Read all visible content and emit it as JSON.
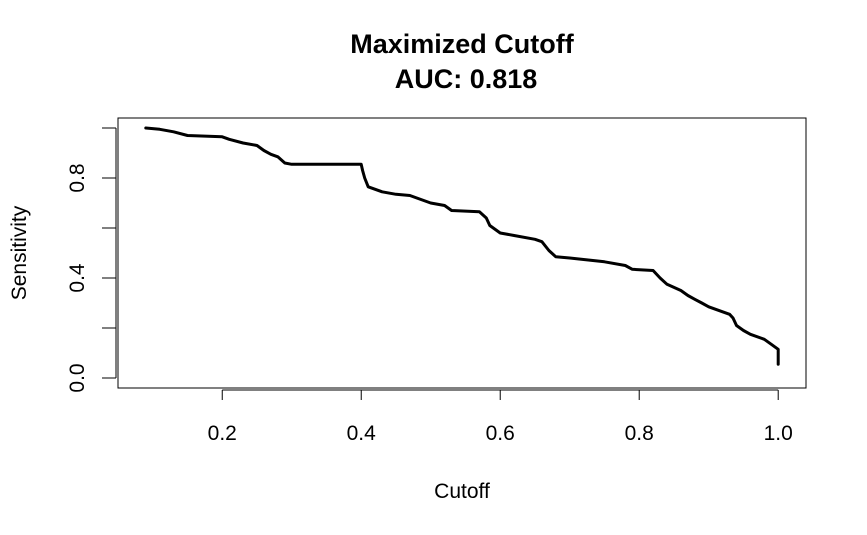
{
  "chart_data": {
    "type": "line",
    "title": "Maximized Cutoff",
    "subtitle": "AUC:  0.818",
    "xlabel": "Cutoff",
    "ylabel": "Sensitivity",
    "xlim": [
      0.05,
      1.04
    ],
    "ylim": [
      -0.04,
      1.04
    ],
    "x_ticks": [
      0.2,
      0.4,
      0.6,
      0.8,
      1.0
    ],
    "x_tick_labels": [
      "0.2",
      "0.4",
      "0.6",
      "0.8",
      "1.0"
    ],
    "y_ticks": [
      0.0,
      0.2,
      0.4,
      0.6,
      0.8,
      1.0
    ],
    "y_tick_labels": [
      "0.0",
      "",
      "0.4",
      "",
      "0.8",
      ""
    ],
    "grid": false,
    "line_color": "#000000",
    "series": [
      {
        "x": [
          0.09,
          0.11,
          0.13,
          0.15,
          0.2,
          0.21,
          0.23,
          0.25,
          0.26,
          0.27,
          0.28,
          0.29,
          0.3,
          0.35,
          0.4,
          0.402,
          0.405,
          0.41,
          0.43,
          0.45,
          0.47,
          0.48,
          0.5,
          0.52,
          0.53,
          0.57,
          0.58,
          0.585,
          0.6,
          0.62,
          0.65,
          0.66,
          0.67,
          0.68,
          0.7,
          0.75,
          0.78,
          0.79,
          0.82,
          0.83,
          0.84,
          0.86,
          0.87,
          0.88,
          0.89,
          0.9,
          0.92,
          0.93,
          0.935,
          0.94,
          0.95,
          0.96,
          0.98,
          0.99,
          1.0,
          1.0
        ],
        "y": [
          1.0,
          0.995,
          0.985,
          0.97,
          0.965,
          0.955,
          0.94,
          0.93,
          0.91,
          0.895,
          0.885,
          0.86,
          0.855,
          0.855,
          0.855,
          0.83,
          0.8,
          0.765,
          0.745,
          0.735,
          0.73,
          0.72,
          0.7,
          0.69,
          0.67,
          0.665,
          0.64,
          0.61,
          0.58,
          0.57,
          0.555,
          0.545,
          0.51,
          0.485,
          0.48,
          0.465,
          0.45,
          0.435,
          0.43,
          0.4,
          0.375,
          0.35,
          0.33,
          0.315,
          0.3,
          0.285,
          0.265,
          0.255,
          0.24,
          0.21,
          0.19,
          0.175,
          0.155,
          0.135,
          0.115,
          0.055
        ]
      }
    ]
  }
}
